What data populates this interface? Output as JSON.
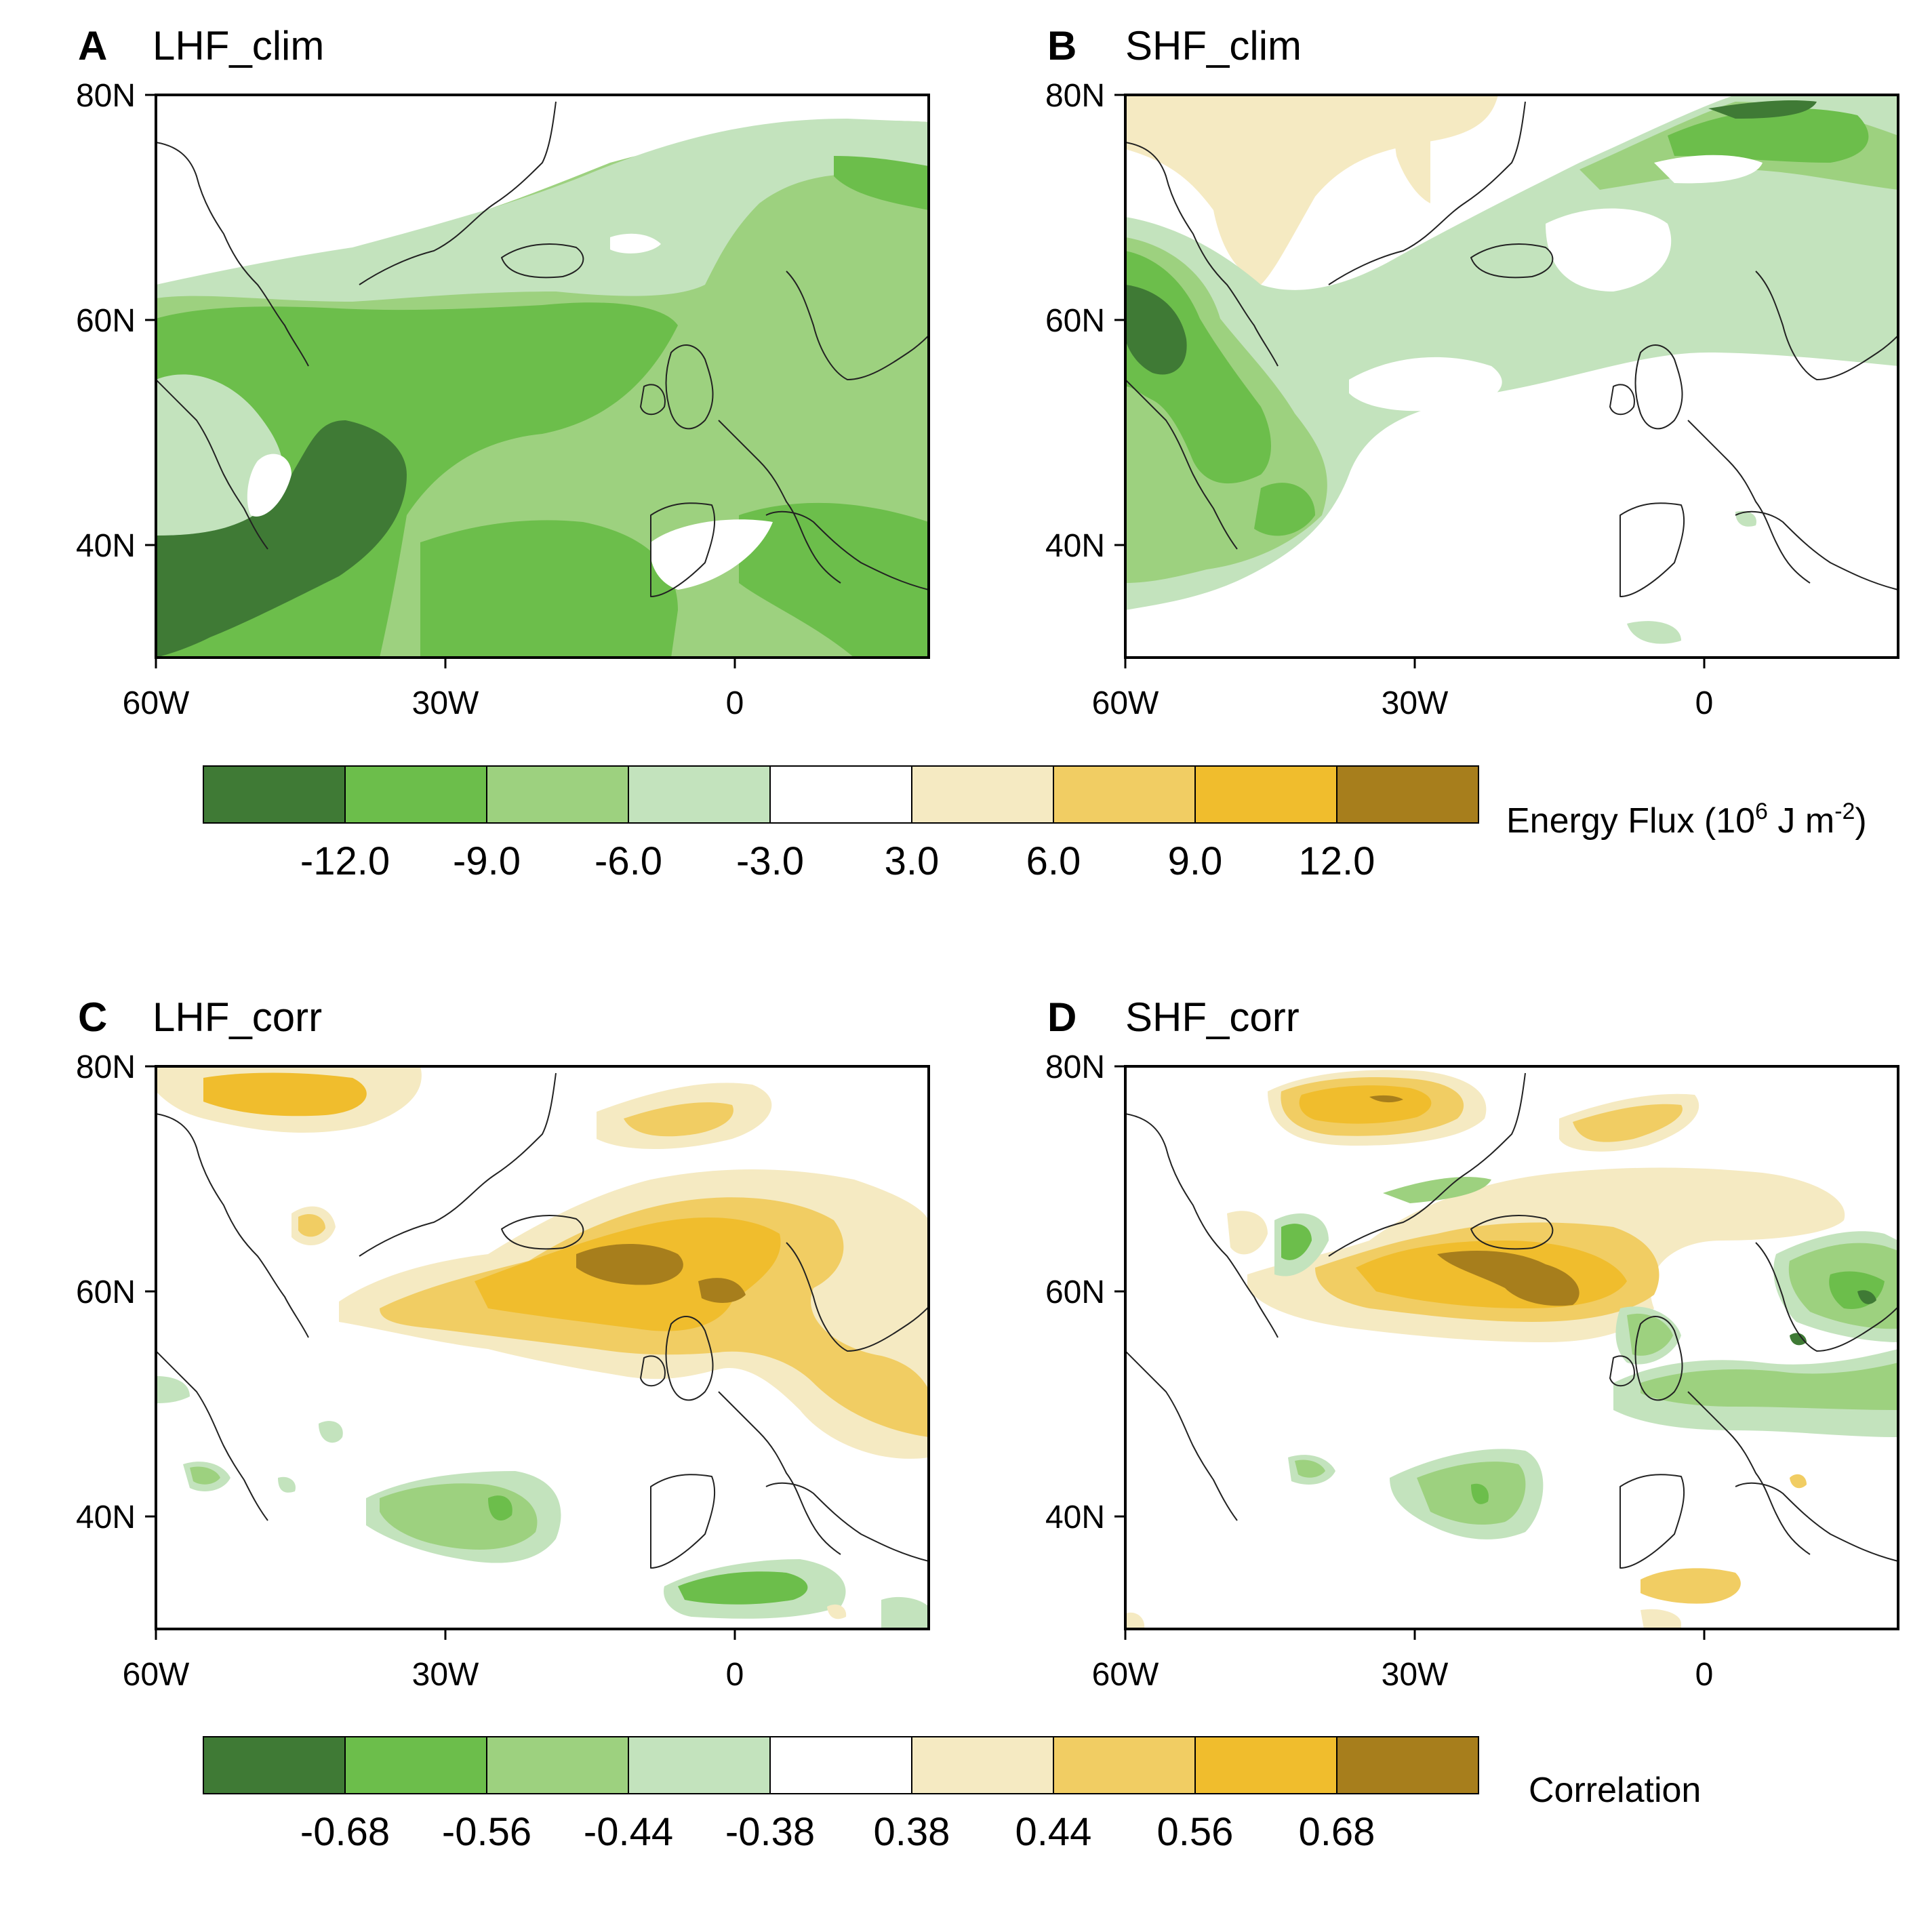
{
  "figure": {
    "panels": [
      {
        "letter": "A",
        "title": "LHF_clim",
        "kind": "clim"
      },
      {
        "letter": "B",
        "title": "SHF_clim",
        "kind": "clim"
      },
      {
        "letter": "C",
        "title": "LHF_corr",
        "kind": "corr"
      },
      {
        "letter": "D",
        "title": "SHF_corr",
        "kind": "corr"
      }
    ],
    "axes": {
      "lon_range": [
        -60,
        20
      ],
      "lat_range": [
        30,
        80
      ],
      "lon_ticks": [
        "60W",
        "30W",
        "0"
      ],
      "lat_ticks": [
        "80N",
        "60N",
        "40N"
      ]
    },
    "colors": [
      "#3f7a35",
      "#6cbe4b",
      "#9dd17f",
      "#c3e3bd",
      "#ffffff",
      "#f5eac2",
      "#f1cd63",
      "#f0bd2d",
      "#a77e1c"
    ],
    "colorbars": [
      {
        "title_main": "Energy Flux (10",
        "title_sup1": "6",
        "title_mid": " J m",
        "title_sup2": "-2",
        "title_end": ")",
        "ticks": [
          "-12.0",
          "-9.0",
          "-6.0",
          "-3.0",
          "3.0",
          "6.0",
          "9.0",
          "12.0"
        ]
      },
      {
        "title_main": "Correlation",
        "ticks": [
          "-0.68",
          "-0.56",
          "-0.44",
          "-0.38",
          "0.38",
          "0.44",
          "0.56",
          "0.68"
        ]
      }
    ]
  }
}
